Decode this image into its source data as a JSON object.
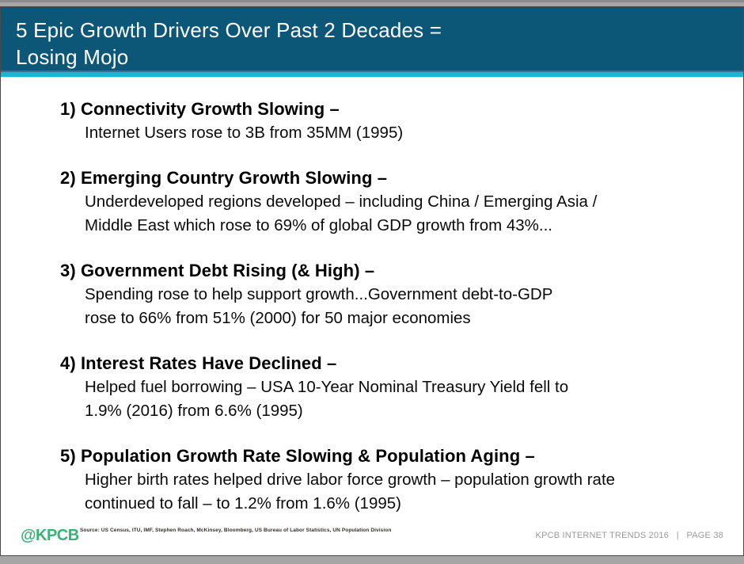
{
  "slide": {
    "title": {
      "line1": "5 Epic Growth Drivers Over Past 2 Decades =",
      "line2": "Losing Mojo"
    },
    "items": [
      {
        "heading": "1) Connectivity Growth Slowing –",
        "lines": [
          "Internet Users rose to 3B from 35MM (1995)"
        ]
      },
      {
        "heading": "2) Emerging Country Growth Slowing –",
        "lines": [
          "Underdeveloped regions developed – including China / Emerging Asia /",
          "Middle East which rose to 69% of global GDP growth from 43%..."
        ]
      },
      {
        "heading": "3) Government Debt Rising (& High) –",
        "lines": [
          "Spending rose to help support growth...Government debt-to-GDP",
          "rose to 66% from 51% (2000) for 50 major economies"
        ]
      },
      {
        "heading": "4) Interest Rates Have Declined –",
        "lines": [
          "Helped fuel borrowing – USA 10-Year Nominal Treasury Yield fell to",
          "1.9% (2016) from 6.6% (1995)"
        ]
      },
      {
        "heading": "5) Population Growth Rate Slowing & Population Aging –",
        "lines": [
          "Higher birth rates helped drive labor force growth – population growth rate",
          "continued to fall – to 1.2% from 1.6% (1995)"
        ]
      }
    ],
    "footer": {
      "logo_text": "@KPCB",
      "source_text": "Source: US Census, ITU, IMF, Stephen Roach, McKinsey, Bloomberg, US Bureau of Labor Statistics, UN Population Division",
      "right_text": "KPCB INTERNET TRENDS 2016   |   PAGE 38"
    },
    "colors": {
      "header_bg": "#0c5678",
      "header_rule": "#2d7795",
      "accent_cyan": "#1ab6cf",
      "logo_green": "#38b375",
      "footer_gray": "#9a9a9a",
      "frame_gray": "#a6a6a6"
    }
  }
}
